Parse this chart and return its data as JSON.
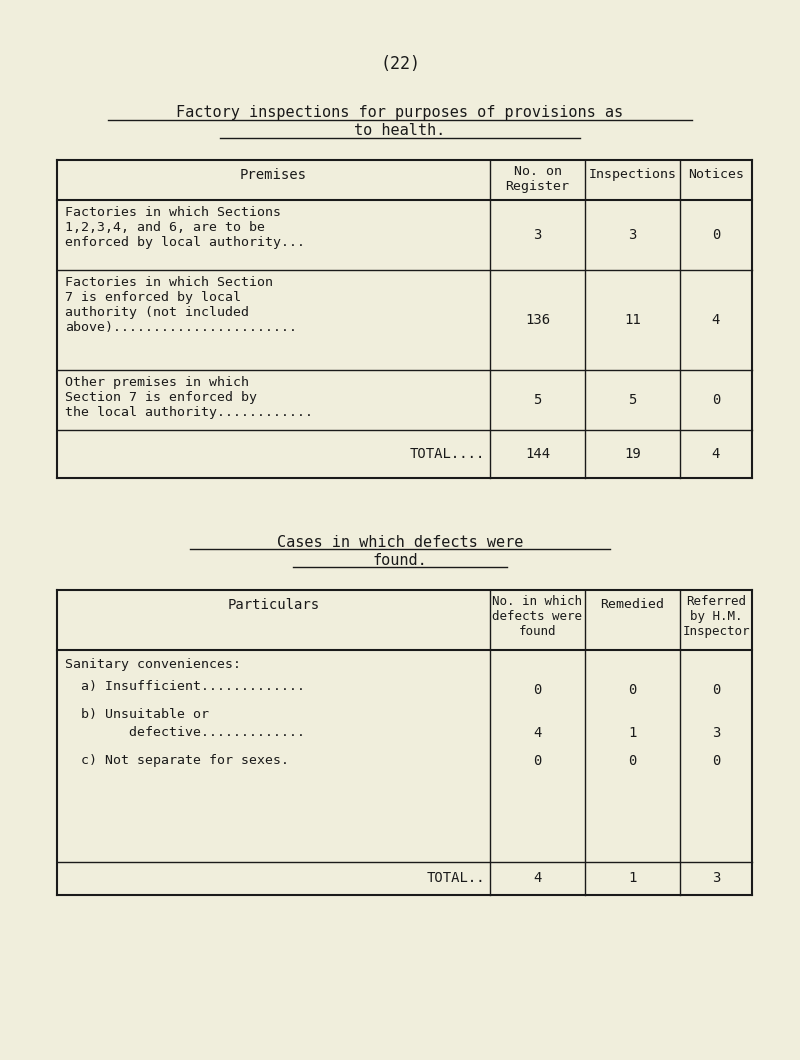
{
  "bg_color": "#f0eedc",
  "text_color": "#1a1a1a",
  "page_number": "(22)",
  "title_line1": "Factory inspections for purposes of provisions as",
  "title_line2": "to health.",
  "section2_title_line1": "Cases in which defects were",
  "section2_title_line2": "found."
}
